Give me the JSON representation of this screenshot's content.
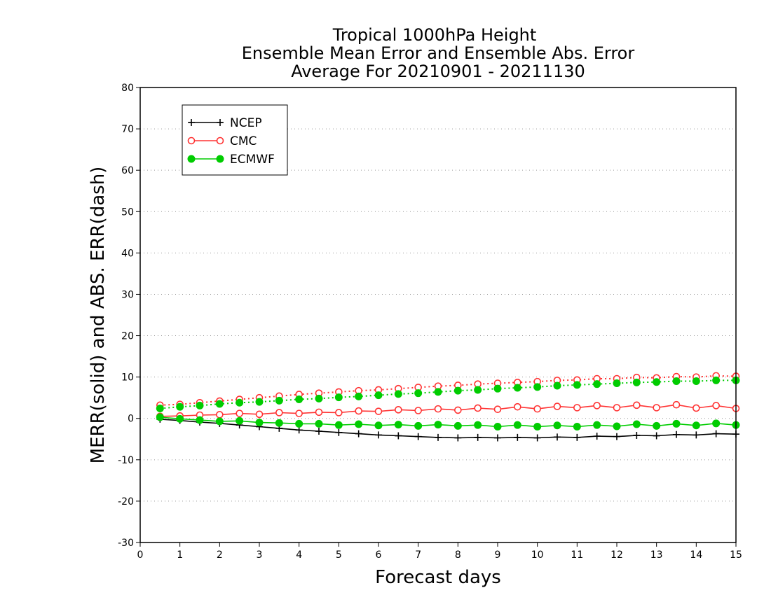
{
  "chart_data": {
    "type": "line",
    "title": [
      "Tropical 1000hPa Height",
      "Ensemble Mean Error and Ensemble Abs. Error",
      "Average For 20210901 - 20211130"
    ],
    "xlabel": "Forecast days",
    "ylabel": "MERR(solid) and ABS. ERR(dash)",
    "xlim": [
      0,
      15
    ],
    "ylim": [
      -30,
      80
    ],
    "x_ticks": [
      0,
      1,
      2,
      3,
      4,
      5,
      6,
      7,
      8,
      9,
      10,
      11,
      12,
      13,
      14,
      15
    ],
    "y_ticks": [
      -30,
      -20,
      -10,
      0,
      10,
      20,
      30,
      40,
      50,
      60,
      70,
      80
    ],
    "grid": "horizontal dotted",
    "legend_position": "top-left",
    "x": [
      0.5,
      1,
      1.5,
      2,
      2.5,
      3,
      3.5,
      4,
      4.5,
      5,
      5.5,
      6,
      6.5,
      7,
      7.5,
      8,
      8.5,
      9,
      9.5,
      10,
      10.5,
      11,
      11.5,
      12,
      12.5,
      13,
      13.5,
      14,
      14.5,
      15
    ],
    "series": [
      {
        "name": "NCEP",
        "color": "#000000",
        "marker": "plus",
        "merr": [
          -0.2,
          -0.5,
          -0.9,
          -1.2,
          -1.6,
          -2.0,
          -2.4,
          -2.8,
          -3.1,
          -3.4,
          -3.7,
          -4.0,
          -4.2,
          -4.4,
          -4.6,
          -4.7,
          -4.6,
          -4.7,
          -4.6,
          -4.7,
          -4.5,
          -4.6,
          -4.3,
          -4.4,
          -4.1,
          -4.2,
          -3.9,
          -4.0,
          -3.7,
          -3.8
        ],
        "abs_err": null
      },
      {
        "name": "CMC",
        "color": "#ff3333",
        "marker": "open-circle",
        "merr": [
          0.5,
          0.6,
          0.8,
          0.9,
          1.2,
          1.0,
          1.4,
          1.2,
          1.5,
          1.4,
          1.8,
          1.7,
          2.1,
          1.9,
          2.3,
          2.0,
          2.5,
          2.2,
          2.8,
          2.3,
          2.9,
          2.6,
          3.1,
          2.6,
          3.2,
          2.6,
          3.3,
          2.5,
          3.1,
          2.4
        ],
        "abs_err": [
          3.2,
          3.4,
          3.8,
          4.2,
          4.6,
          5.0,
          5.4,
          5.8,
          6.1,
          6.4,
          6.7,
          6.9,
          7.2,
          7.5,
          7.8,
          8.0,
          8.3,
          8.5,
          8.7,
          8.9,
          9.2,
          9.3,
          9.6,
          9.6,
          9.9,
          9.8,
          10.1,
          10.0,
          10.3,
          10.2
        ]
      },
      {
        "name": "ECMWF",
        "color": "#00cc00",
        "marker": "filled-circle",
        "merr": [
          0.3,
          -0.1,
          -0.4,
          -0.7,
          -0.6,
          -1.0,
          -1.1,
          -1.3,
          -1.3,
          -1.6,
          -1.4,
          -1.7,
          -1.5,
          -1.8,
          -1.5,
          -1.8,
          -1.6,
          -2.0,
          -1.6,
          -2.0,
          -1.7,
          -2.0,
          -1.6,
          -1.9,
          -1.4,
          -1.8,
          -1.3,
          -1.7,
          -1.2,
          -1.6
        ],
        "abs_err": [
          2.4,
          2.8,
          3.1,
          3.5,
          3.8,
          4.0,
          4.3,
          4.6,
          4.8,
          5.1,
          5.3,
          5.6,
          5.9,
          6.1,
          6.4,
          6.7,
          6.9,
          7.2,
          7.4,
          7.6,
          7.9,
          8.1,
          8.3,
          8.5,
          8.7,
          8.8,
          9.0,
          9.0,
          9.2,
          9.2
        ]
      }
    ]
  }
}
